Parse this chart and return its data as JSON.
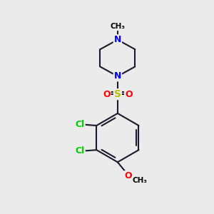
{
  "background_color": "#ebebeb",
  "atom_colors": {
    "C": "#000000",
    "N": "#0000ee",
    "O": "#ff0000",
    "S": "#bbbb00",
    "Cl": "#00cc00",
    "H": "#000000"
  },
  "bond_color": "#1a1a2e",
  "bond_width": 1.5,
  "fig_bg": "#ebebeb"
}
